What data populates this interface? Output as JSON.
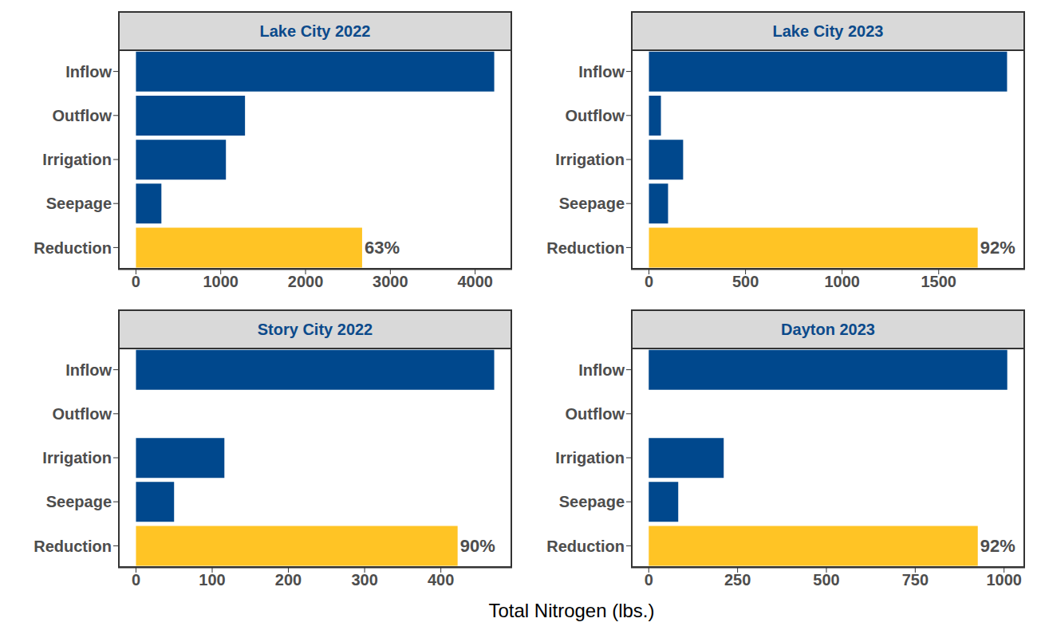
{
  "chart_data": [
    {
      "type": "bar",
      "orientation": "horizontal",
      "title": "Lake City 2022",
      "categories": [
        "Inflow",
        "Outflow",
        "Irrigation",
        "Seepage",
        "Reduction"
      ],
      "values": [
        4225,
        1286,
        1061,
        300,
        2667
      ],
      "colors": [
        "#00488d",
        "#00488d",
        "#00488d",
        "#00488d",
        "#ffc425"
      ],
      "xlim": [
        -211,
        4436
      ],
      "xticks": [
        0,
        1000,
        2000,
        3000,
        4000
      ],
      "annotations": [
        {
          "category": "Reduction",
          "text": "63%"
        }
      ]
    },
    {
      "type": "bar",
      "orientation": "horizontal",
      "title": "Lake City 2023",
      "categories": [
        "Inflow",
        "Outflow",
        "Irrigation",
        "Seepage",
        "Reduction"
      ],
      "values": [
        1854,
        62,
        177,
        99,
        1702
      ],
      "colors": [
        "#00488d",
        "#00488d",
        "#00488d",
        "#00488d",
        "#ffc425"
      ],
      "xlim": [
        -93,
        1947
      ],
      "xticks": [
        0,
        500,
        1000,
        1500
      ],
      "annotations": [
        {
          "category": "Reduction",
          "text": "92%"
        }
      ]
    },
    {
      "type": "bar",
      "orientation": "horizontal",
      "title": "Story City 2022",
      "categories": [
        "Inflow",
        "Outflow",
        "Irrigation",
        "Seepage",
        "Reduction"
      ],
      "values": [
        470,
        0,
        116,
        50,
        422
      ],
      "colors": [
        "#00488d",
        "#00488d",
        "#00488d",
        "#00488d",
        "#ffc425"
      ],
      "xlim": [
        -23.5,
        493.5
      ],
      "xticks": [
        0,
        100,
        200,
        300,
        400
      ],
      "annotations": [
        {
          "category": "Reduction",
          "text": "90%"
        }
      ]
    },
    {
      "type": "bar",
      "orientation": "horizontal",
      "title": "Dayton 2023",
      "categories": [
        "Inflow",
        "Outflow",
        "Irrigation",
        "Seepage",
        "Reduction"
      ],
      "values": [
        1009,
        0,
        211,
        83,
        926
      ],
      "colors": [
        "#00488d",
        "#00488d",
        "#00488d",
        "#00488d",
        "#ffc425"
      ],
      "xlim": [
        -50,
        1059
      ],
      "xticks": [
        0,
        250,
        500,
        750,
        1000
      ],
      "annotations": [
        {
          "category": "Reduction",
          "text": "92%"
        }
      ]
    }
  ],
  "xlabel": "Total Nitrogen (lbs.)"
}
